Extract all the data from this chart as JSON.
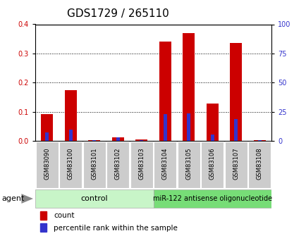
{
  "title": "GDS1729 / 265110",
  "samples": [
    "GSM83090",
    "GSM83100",
    "GSM83101",
    "GSM83102",
    "GSM83103",
    "GSM83104",
    "GSM83105",
    "GSM83106",
    "GSM83107",
    "GSM83108"
  ],
  "count_values": [
    0.093,
    0.175,
    0.003,
    0.012,
    0.004,
    0.34,
    0.37,
    0.128,
    0.335,
    0.003
  ],
  "percentile_right": [
    7.5,
    10.0,
    0.5,
    3.0,
    0.5,
    23.0,
    23.5,
    5.5,
    18.75,
    0.5
  ],
  "ylim_left": [
    0,
    0.4
  ],
  "ylim_right": [
    0,
    100
  ],
  "yticks_left": [
    0.0,
    0.1,
    0.2,
    0.3,
    0.4
  ],
  "yticks_right": [
    0,
    25,
    50,
    75,
    100
  ],
  "control_label": "control",
  "treatment_label": "miR-122 antisense oligonucleotide",
  "agent_label": "agent",
  "bar_color_count": "#cc0000",
  "bar_color_percentile": "#3333cc",
  "control_bg": "#c8f5c8",
  "treatment_bg": "#77dd77",
  "sample_bg": "#cccccc",
  "legend_count": "count",
  "legend_percentile": "percentile rank within the sample",
  "title_fontsize": 11,
  "tick_fontsize": 7,
  "n_control": 5,
  "n_treatment": 5
}
